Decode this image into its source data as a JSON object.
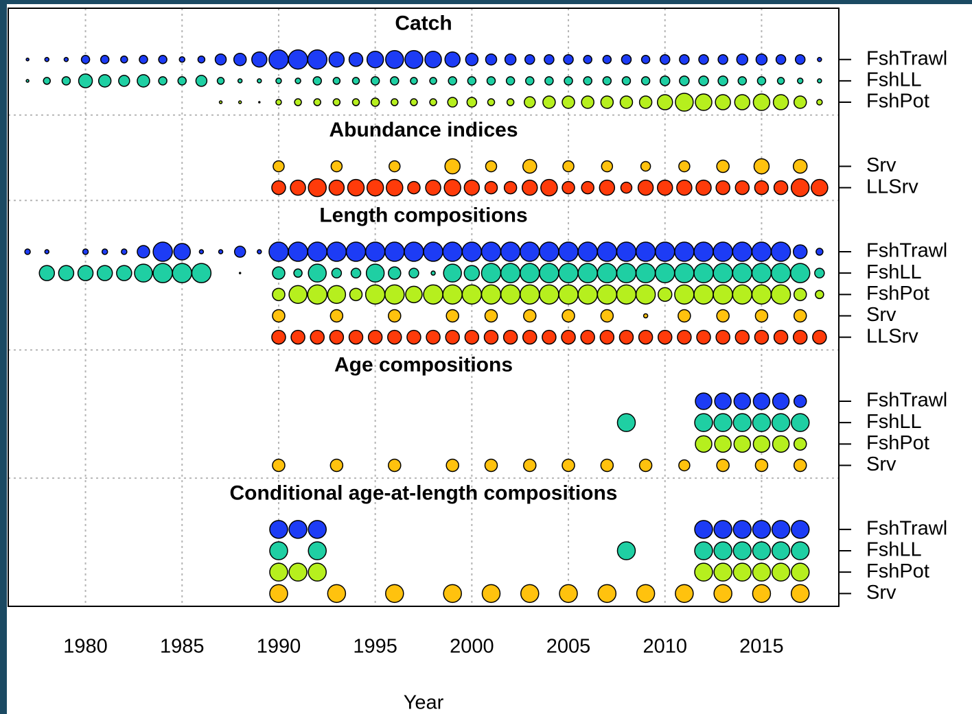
{
  "chart_data": {
    "type": "bubble",
    "xlabel": "Year",
    "xlim": [
      1976,
      2019
    ],
    "xticks": [
      1980,
      1985,
      1990,
      1995,
      2000,
      2005,
      2010,
      2015
    ],
    "grid": true,
    "sections": [
      {
        "title": "Catch",
        "series": [
          {
            "name": "FshTrawl",
            "color": "#1d3cf5",
            "x": [
              1977,
              1978,
              1979,
              1980,
              1981,
              1982,
              1983,
              1984,
              1985,
              1986,
              1987,
              1988,
              1989,
              1990,
              1991,
              1992,
              1993,
              1994,
              1995,
              1996,
              1997,
              1998,
              1999,
              2000,
              2001,
              2002,
              2003,
              2004,
              2005,
              2006,
              2007,
              2008,
              2009,
              2010,
              2011,
              2012,
              2013,
              2014,
              2015,
              2016,
              2017,
              2018
            ],
            "sizes": [
              2,
              3,
              3,
              6,
              6,
              5,
              6,
              6,
              4,
              5,
              8,
              9,
              11,
              14,
              14,
              14,
              11,
              10,
              12,
              13,
              13,
              12,
              11,
              9,
              8,
              8,
              7,
              7,
              7,
              6,
              6,
              7,
              6,
              7,
              7,
              7,
              7,
              8,
              8,
              7,
              7,
              3
            ]
          },
          {
            "name": "FshLL",
            "color": "#1fcfa3",
            "x": [
              1977,
              1978,
              1979,
              1980,
              1981,
              1982,
              1983,
              1984,
              1985,
              1986,
              1987,
              1988,
              1989,
              1990,
              1991,
              1992,
              1993,
              1994,
              1995,
              1996,
              1997,
              1998,
              1999,
              2000,
              2001,
              2002,
              2003,
              2004,
              2005,
              2006,
              2007,
              2008,
              2009,
              2010,
              2011,
              2012,
              2013,
              2014,
              2015,
              2016,
              2017,
              2018
            ],
            "sizes": [
              2,
              5,
              6,
              10,
              9,
              8,
              9,
              6,
              6,
              8,
              5,
              3,
              3,
              4,
              4,
              6,
              5,
              5,
              6,
              6,
              5,
              5,
              6,
              6,
              6,
              6,
              6,
              6,
              6,
              6,
              6,
              6,
              6,
              7,
              7,
              7,
              7,
              6,
              6,
              5,
              4,
              3
            ]
          },
          {
            "name": "FshPot",
            "color": "#b6ef1e",
            "x": [
              1987,
              1988,
              1989,
              1990,
              1991,
              1992,
              1993,
              1994,
              1995,
              1996,
              1997,
              1998,
              1999,
              2000,
              2001,
              2002,
              2003,
              2004,
              2005,
              2006,
              2007,
              2008,
              2009,
              2010,
              2011,
              2012,
              2013,
              2014,
              2015,
              2016,
              2017,
              2018
            ],
            "sizes": [
              2,
              2,
              1,
              4,
              5,
              5,
              5,
              5,
              6,
              5,
              5,
              5,
              7,
              7,
              5,
              5,
              8,
              9,
              9,
              9,
              9,
              9,
              9,
              11,
              13,
              12,
              11,
              11,
              12,
              11,
              9,
              4
            ]
          }
        ]
      },
      {
        "title": "Abundance indices",
        "series": [
          {
            "name": "Srv",
            "color": "#ffc20e",
            "x": [
              1990,
              1993,
              1996,
              1999,
              2001,
              2003,
              2005,
              2007,
              2009,
              2011,
              2013,
              2015,
              2017
            ],
            "sizes": [
              8,
              8,
              8,
              11,
              8,
              10,
              8,
              8,
              7,
              8,
              9,
              11,
              10
            ]
          },
          {
            "name": "LLSrv",
            "color": "#ff3b0a",
            "x": [
              1990,
              1991,
              1992,
              1993,
              1994,
              1995,
              1996,
              1997,
              1998,
              1999,
              2000,
              2001,
              2002,
              2003,
              2004,
              2005,
              2006,
              2007,
              2008,
              2009,
              2010,
              2011,
              2012,
              2013,
              2014,
              2015,
              2016,
              2017,
              2018
            ],
            "sizes": [
              10,
              11,
              13,
              11,
              12,
              12,
              12,
              9,
              11,
              12,
              11,
              9,
              9,
              11,
              12,
              9,
              9,
              11,
              8,
              11,
              11,
              11,
              11,
              10,
              10,
              10,
              10,
              13,
              12
            ]
          }
        ]
      },
      {
        "title": "Length compositions",
        "series": [
          {
            "name": "FshTrawl",
            "color": "#1d3cf5",
            "x": [
              1977,
              1978,
              1980,
              1981,
              1982,
              1983,
              1984,
              1985,
              1986,
              1987,
              1988,
              1989,
              1990,
              1991,
              1992,
              1993,
              1994,
              1995,
              1996,
              1997,
              1998,
              1999,
              2000,
              2001,
              2002,
              2003,
              2004,
              2005,
              2006,
              2007,
              2008,
              2009,
              2010,
              2011,
              2012,
              2013,
              2014,
              2015,
              2016,
              2017,
              2018
            ],
            "sizes": [
              4,
              3,
              4,
              4,
              4,
              9,
              14,
              12,
              3,
              3,
              8,
              3,
              14,
              14,
              14,
              14,
              14,
              14,
              14,
              14,
              14,
              14,
              14,
              14,
              14,
              14,
              14,
              14,
              14,
              14,
              14,
              14,
              14,
              14,
              14,
              14,
              14,
              14,
              14,
              10,
              5
            ]
          },
          {
            "name": "FshLL",
            "color": "#1fcfa3",
            "x": [
              1978,
              1979,
              1980,
              1981,
              1982,
              1983,
              1984,
              1985,
              1986,
              1988,
              1990,
              1991,
              1992,
              1993,
              1994,
              1995,
              1996,
              1997,
              1998,
              1999,
              2000,
              2001,
              2002,
              2003,
              2004,
              2005,
              2006,
              2007,
              2008,
              2009,
              2010,
              2011,
              2012,
              2013,
              2014,
              2015,
              2016,
              2017,
              2018
            ],
            "sizes": [
              11,
              11,
              11,
              11,
              11,
              13,
              14,
              14,
              14,
              1,
              9,
              6,
              13,
              7,
              7,
              13,
              9,
              7,
              3,
              13,
              11,
              14,
              14,
              14,
              14,
              14,
              14,
              14,
              14,
              14,
              14,
              14,
              14,
              14,
              14,
              14,
              14,
              14,
              7
            ]
          },
          {
            "name": "FshPot",
            "color": "#b6ef1e",
            "x": [
              1990,
              1991,
              1992,
              1993,
              1994,
              1995,
              1996,
              1997,
              1998,
              1999,
              2000,
              2001,
              2002,
              2003,
              2004,
              2005,
              2006,
              2007,
              2008,
              2009,
              2010,
              2011,
              2012,
              2013,
              2014,
              2015,
              2016,
              2017,
              2018
            ],
            "sizes": [
              9,
              13,
              14,
              13,
              9,
              14,
              14,
              12,
              14,
              14,
              14,
              14,
              14,
              14,
              14,
              14,
              14,
              14,
              14,
              14,
              10,
              14,
              14,
              14,
              14,
              14,
              14,
              9,
              6
            ]
          },
          {
            "name": "Srv",
            "color": "#ffc20e",
            "x": [
              1990,
              1993,
              1996,
              1999,
              2001,
              2003,
              2005,
              2007,
              2009,
              2011,
              2013,
              2015,
              2017
            ],
            "sizes": [
              9,
              9,
              9,
              9,
              9,
              9,
              9,
              9,
              3,
              9,
              9,
              9,
              9
            ]
          },
          {
            "name": "LLSrv",
            "color": "#ff3b0a",
            "x": [
              1990,
              1991,
              1992,
              1993,
              1994,
              1995,
              1996,
              1997,
              1998,
              1999,
              2000,
              2001,
              2002,
              2003,
              2004,
              2005,
              2006,
              2007,
              2008,
              2009,
              2010,
              2011,
              2012,
              2013,
              2014,
              2015,
              2016,
              2017,
              2018
            ],
            "sizes": [
              10,
              10,
              10,
              10,
              10,
              10,
              10,
              10,
              10,
              10,
              10,
              10,
              10,
              10,
              10,
              10,
              10,
              10,
              10,
              10,
              10,
              10,
              10,
              10,
              10,
              10,
              10,
              10,
              10
            ]
          }
        ]
      },
      {
        "title": "Age compositions",
        "series": [
          {
            "name": "FshTrawl",
            "color": "#1d3cf5",
            "x": [
              2012,
              2013,
              2014,
              2015,
              2016,
              2017
            ],
            "sizes": [
              12,
              12,
              12,
              12,
              12,
              9
            ]
          },
          {
            "name": "FshLL",
            "color": "#1fcfa3",
            "x": [
              2008,
              2012,
              2013,
              2014,
              2015,
              2016,
              2017
            ],
            "sizes": [
              13,
              13,
              13,
              13,
              13,
              13,
              13
            ]
          },
          {
            "name": "FshPot",
            "color": "#b6ef1e",
            "x": [
              2012,
              2013,
              2014,
              2015,
              2016,
              2017
            ],
            "sizes": [
              12,
              12,
              12,
              12,
              12,
              9
            ]
          },
          {
            "name": "Srv",
            "color": "#ffc20e",
            "x": [
              1990,
              1993,
              1996,
              1999,
              2001,
              2003,
              2005,
              2007,
              2009,
              2011,
              2013,
              2015,
              2017
            ],
            "sizes": [
              9,
              9,
              9,
              9,
              9,
              9,
              9,
              9,
              9,
              8,
              9,
              9,
              9
            ]
          }
        ]
      },
      {
        "title": "Conditional age-at-length compositions",
        "series": [
          {
            "name": "FshTrawl",
            "color": "#1d3cf5",
            "x": [
              1990,
              1991,
              1992,
              2012,
              2013,
              2014,
              2015,
              2016,
              2017
            ],
            "sizes": [
              13,
              13,
              13,
              13,
              13,
              13,
              13,
              13,
              13
            ]
          },
          {
            "name": "FshLL",
            "color": "#1fcfa3",
            "x": [
              1990,
              1992,
              2008,
              2012,
              2013,
              2014,
              2015,
              2016,
              2017
            ],
            "sizes": [
              13,
              13,
              13,
              13,
              13,
              13,
              13,
              13,
              13
            ]
          },
          {
            "name": "FshPot",
            "color": "#b6ef1e",
            "x": [
              1990,
              1991,
              1992,
              2012,
              2013,
              2014,
              2015,
              2016,
              2017
            ],
            "sizes": [
              13,
              13,
              13,
              13,
              13,
              13,
              13,
              13,
              13
            ]
          },
          {
            "name": "Srv",
            "color": "#ffc20e",
            "x": [
              1990,
              1993,
              1996,
              1999,
              2001,
              2003,
              2005,
              2007,
              2009,
              2011,
              2013,
              2015,
              2017
            ],
            "sizes": [
              13,
              13,
              13,
              13,
              13,
              13,
              13,
              13,
              13,
              13,
              13,
              13,
              13
            ]
          }
        ]
      }
    ]
  }
}
